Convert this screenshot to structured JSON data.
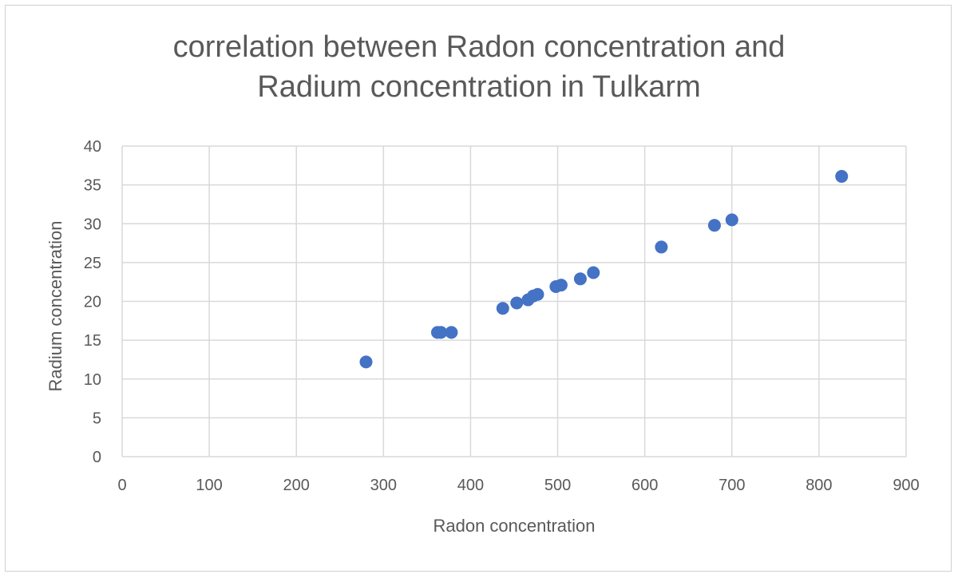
{
  "chart_data": {
    "type": "scatter",
    "title_lines": [
      "correlation between Radon concentration and",
      "Radium concentration in Tulkarm"
    ],
    "xlabel": "Radon concentration",
    "ylabel": "Radium concentration",
    "xlim": [
      0,
      900
    ],
    "ylim": [
      0,
      40
    ],
    "x_ticks": [
      0,
      100,
      200,
      300,
      400,
      500,
      600,
      700,
      800,
      900
    ],
    "y_ticks": [
      0,
      5,
      10,
      15,
      20,
      25,
      30,
      35,
      40
    ],
    "grid": true,
    "legend": "none",
    "marker_color": "#4472C4",
    "points": [
      {
        "x": 280,
        "y": 12.2
      },
      {
        "x": 362,
        "y": 16.0
      },
      {
        "x": 366,
        "y": 16.0
      },
      {
        "x": 378,
        "y": 16.0
      },
      {
        "x": 437,
        "y": 19.1
      },
      {
        "x": 453,
        "y": 19.8
      },
      {
        "x": 466,
        "y": 20.2
      },
      {
        "x": 472,
        "y": 20.7
      },
      {
        "x": 477,
        "y": 20.9
      },
      {
        "x": 498,
        "y": 21.9
      },
      {
        "x": 504,
        "y": 22.1
      },
      {
        "x": 526,
        "y": 22.9
      },
      {
        "x": 541,
        "y": 23.7
      },
      {
        "x": 619,
        "y": 27.0
      },
      {
        "x": 680,
        "y": 29.8
      },
      {
        "x": 700,
        "y": 30.5
      },
      {
        "x": 826,
        "y": 36.1
      }
    ]
  }
}
